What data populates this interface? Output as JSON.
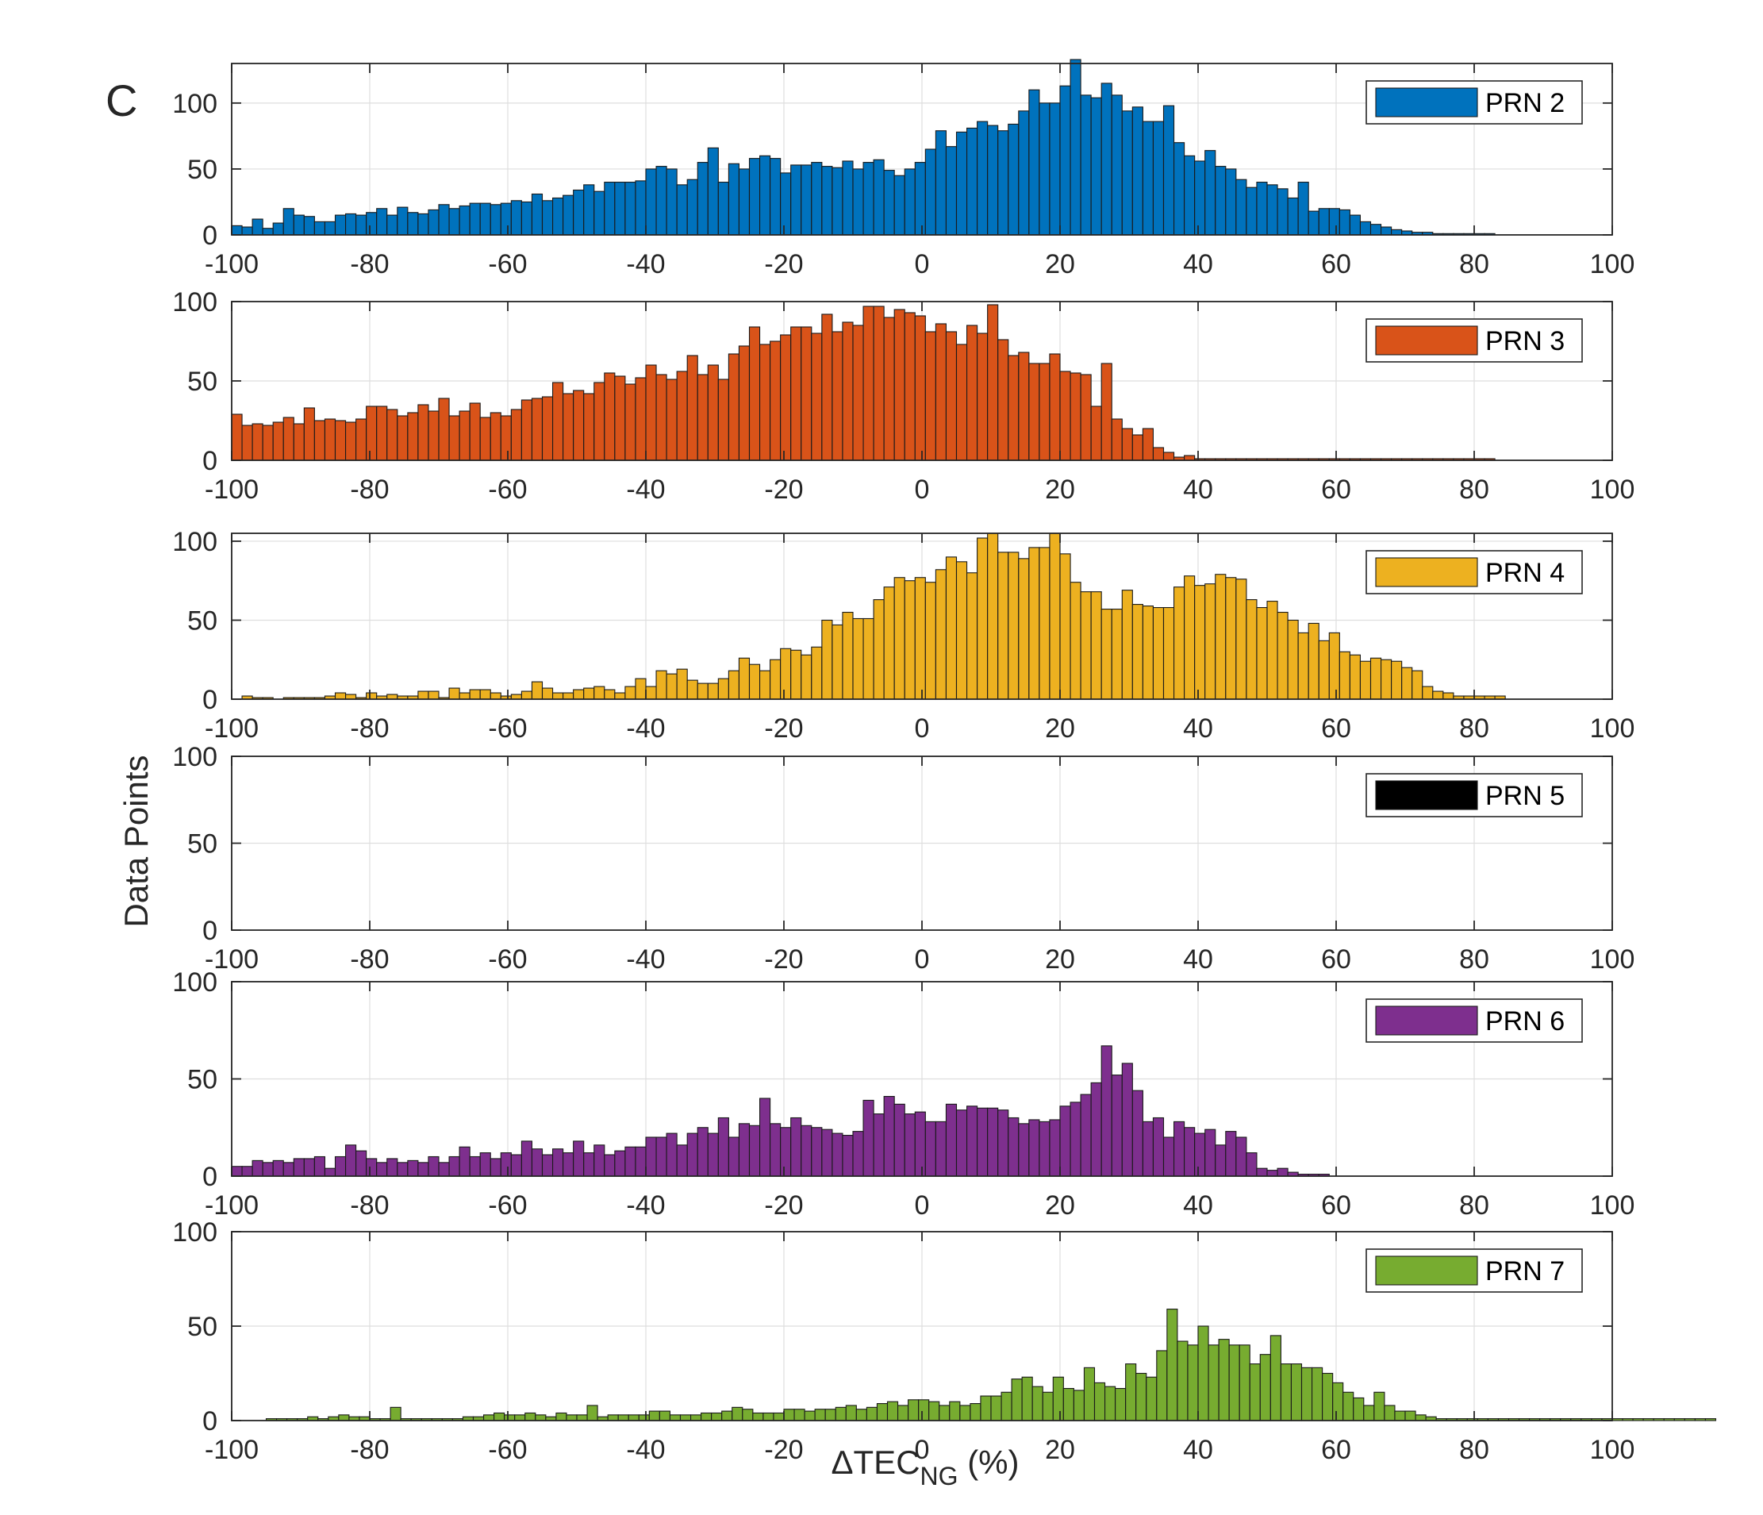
{
  "figure": {
    "panel_label": "C",
    "ylabel": "Data Points",
    "xlabel_main": "ΔTEC",
    "xlabel_sub": "NG",
    "xlabel_unit": " (%)"
  },
  "chart_data": [
    {
      "type": "bar",
      "series_name": "PRN 2",
      "color": "#0072BD",
      "xlim": [
        -100,
        100
      ],
      "ylim": [
        0,
        130
      ],
      "yticks": [
        0,
        50,
        100
      ],
      "xticks": [
        -100,
        -80,
        -60,
        -40,
        -20,
        0,
        20,
        40,
        60,
        80,
        100
      ],
      "bin_start": -100,
      "bin_width": 1.5,
      "values": [
        7,
        6,
        12,
        5,
        9,
        20,
        15,
        14,
        10,
        10,
        15,
        16,
        15,
        17,
        20,
        15,
        21,
        17,
        16,
        19,
        23,
        20,
        22,
        24,
        24,
        23,
        24,
        26,
        25,
        31,
        26,
        28,
        30,
        34,
        38,
        33,
        40,
        40,
        40,
        41,
        50,
        52,
        50,
        38,
        42,
        55,
        66,
        40,
        54,
        50,
        58,
        60,
        58,
        47,
        53,
        53,
        55,
        52,
        51,
        56,
        50,
        55,
        57,
        49,
        45,
        50,
        55,
        65,
        79,
        67,
        78,
        81,
        86,
        83,
        79,
        84,
        94,
        110,
        100,
        100,
        113,
        133,
        106,
        104,
        115,
        106,
        94,
        97,
        86,
        86,
        98,
        70,
        60,
        56,
        64,
        52,
        50,
        42,
        36,
        40,
        38,
        35,
        28,
        40,
        18,
        20,
        20,
        19,
        15,
        10,
        8,
        6,
        4,
        3,
        2,
        2,
        1,
        1,
        1,
        1,
        1,
        1
      ]
    },
    {
      "type": "bar",
      "series_name": "PRN 3",
      "color": "#D95319",
      "xlim": [
        -100,
        100
      ],
      "ylim": [
        0,
        100
      ],
      "yticks": [
        0,
        50,
        100
      ],
      "xticks": [
        -100,
        -80,
        -60,
        -40,
        -20,
        0,
        20,
        40,
        60,
        80,
        100
      ],
      "bin_start": -100,
      "bin_width": 1.5,
      "values": [
        29,
        22,
        23,
        22,
        24,
        27,
        23,
        33,
        25,
        26,
        25,
        24,
        26,
        34,
        34,
        32,
        28,
        30,
        35,
        31,
        39,
        28,
        31,
        36,
        27,
        30,
        28,
        32,
        38,
        39,
        40,
        49,
        42,
        44,
        42,
        49,
        55,
        53,
        48,
        52,
        60,
        54,
        51,
        56,
        66,
        54,
        60,
        51,
        67,
        72,
        84,
        73,
        75,
        79,
        84,
        84,
        80,
        92,
        81,
        87,
        85,
        97,
        97,
        90,
        95,
        93,
        91,
        81,
        86,
        81,
        73,
        85,
        80,
        98,
        76,
        66,
        68,
        61,
        61,
        67,
        56,
        55,
        54,
        34,
        61,
        26,
        20,
        16,
        20,
        8,
        5,
        2,
        3,
        1,
        1,
        1,
        1,
        1,
        1,
        1,
        1,
        1,
        1,
        1,
        1,
        1,
        1,
        1,
        1,
        1,
        1,
        1,
        1,
        1,
        1,
        1,
        1,
        1,
        1,
        1,
        1,
        1
      ]
    },
    {
      "type": "bar",
      "series_name": "PRN 4",
      "color": "#EDB120",
      "xlim": [
        -100,
        100
      ],
      "ylim": [
        0,
        105
      ],
      "yticks": [
        0,
        50,
        100
      ],
      "xticks": [
        -100,
        -80,
        -60,
        -40,
        -20,
        0,
        20,
        40,
        60,
        80,
        100
      ],
      "bin_start": -100,
      "bin_width": 1.5,
      "values": [
        0,
        2,
        1,
        1,
        0,
        1,
        1,
        1,
        1,
        2,
        4,
        3,
        1,
        4,
        2,
        3,
        2,
        2,
        5,
        5,
        1,
        7,
        4,
        6,
        6,
        4,
        2,
        3,
        5,
        11,
        7,
        4,
        4,
        6,
        7,
        8,
        6,
        4,
        8,
        13,
        8,
        18,
        16,
        19,
        12,
        10,
        10,
        13,
        18,
        26,
        22,
        18,
        25,
        32,
        31,
        28,
        33,
        50,
        47,
        55,
        51,
        51,
        63,
        71,
        77,
        75,
        77,
        74,
        82,
        90,
        87,
        80,
        102,
        105,
        93,
        93,
        89,
        96,
        96,
        105,
        92,
        74,
        68,
        68,
        57,
        57,
        69,
        60,
        59,
        58,
        58,
        71,
        78,
        72,
        73,
        79,
        77,
        76,
        63,
        58,
        62,
        55,
        50,
        42,
        48,
        37,
        42,
        30,
        28,
        24,
        26,
        25,
        24,
        20,
        18,
        8,
        5,
        4,
        2,
        2,
        2,
        2,
        2
      ]
    },
    {
      "type": "bar",
      "series_name": "PRN 5",
      "color": "#000000",
      "xlim": [
        -100,
        100
      ],
      "ylim": [
        0,
        100
      ],
      "yticks": [
        0,
        50,
        100
      ],
      "xticks": [
        -100,
        -80,
        -60,
        -40,
        -20,
        0,
        20,
        40,
        60,
        80,
        100
      ],
      "bin_start": 0,
      "bin_width": 1.5,
      "values": [
        0,
        0,
        0,
        0,
        0,
        0,
        0,
        0,
        0,
        0,
        0,
        0,
        0,
        0,
        0,
        0,
        0,
        0,
        0,
        0,
        0,
        0,
        0,
        0,
        0,
        0,
        0,
        0,
        0,
        0,
        0,
        0,
        0,
        0,
        0,
        0,
        0,
        0,
        0,
        0,
        0
      ]
    },
    {
      "type": "bar",
      "series_name": "PRN 6",
      "color": "#7E2F8E",
      "xlim": [
        -100,
        100
      ],
      "ylim": [
        0,
        100
      ],
      "yticks": [
        0,
        50,
        100
      ],
      "xticks": [
        -100,
        -80,
        -60,
        -40,
        -20,
        0,
        20,
        40,
        60,
        80,
        100
      ],
      "bin_start": -100,
      "bin_width": 1.5,
      "values": [
        5,
        5,
        8,
        7,
        8,
        7,
        9,
        9,
        10,
        4,
        10,
        16,
        13,
        9,
        7,
        9,
        7,
        8,
        7,
        10,
        7,
        10,
        15,
        10,
        12,
        9,
        12,
        11,
        18,
        14,
        11,
        14,
        12,
        18,
        12,
        16,
        11,
        13,
        15,
        15,
        20,
        20,
        22,
        16,
        22,
        25,
        22,
        30,
        20,
        27,
        26,
        40,
        27,
        25,
        30,
        26,
        25,
        24,
        22,
        21,
        23,
        39,
        32,
        41,
        37,
        32,
        33,
        28,
        28,
        37,
        34,
        36,
        35,
        35,
        34,
        30,
        27,
        29,
        28,
        29,
        36,
        38,
        42,
        48,
        67,
        52,
        58,
        44,
        28,
        30,
        20,
        28,
        25,
        22,
        24,
        16,
        23,
        20,
        12,
        4,
        3,
        4,
        2,
        1,
        1,
        1
      ]
    },
    {
      "type": "bar",
      "series_name": "PRN 7",
      "color": "#77AC30",
      "xlim": [
        -100,
        100
      ],
      "ylim": [
        0,
        100
      ],
      "yticks": [
        0,
        50,
        100
      ],
      "xticks": [
        -100,
        -80,
        -60,
        -40,
        -20,
        0,
        20,
        40,
        60,
        80,
        100
      ],
      "bin_start": -95,
      "bin_width": 1.5,
      "values": [
        1,
        1,
        1,
        1,
        2,
        1,
        2,
        3,
        2,
        2,
        1,
        1,
        7,
        1,
        1,
        1,
        1,
        1,
        1,
        2,
        2,
        3,
        4,
        3,
        3,
        4,
        3,
        2,
        4,
        3,
        3,
        8,
        2,
        3,
        3,
        3,
        3,
        5,
        5,
        3,
        3,
        3,
        4,
        4,
        5,
        7,
        6,
        4,
        4,
        4,
        6,
        6,
        5,
        6,
        6,
        7,
        8,
        6,
        7,
        9,
        10,
        8,
        11,
        11,
        10,
        8,
        10,
        8,
        9,
        13,
        13,
        15,
        22,
        23,
        18,
        15,
        23,
        17,
        16,
        28,
        20,
        18,
        17,
        30,
        25,
        23,
        37,
        59,
        42,
        40,
        50,
        40,
        43,
        40,
        40,
        30,
        35,
        45,
        30,
        30,
        28,
        28,
        25,
        20,
        15,
        12,
        8,
        15,
        8,
        5,
        5,
        3,
        2,
        1,
        1,
        1,
        1,
        1,
        1,
        1,
        1,
        1,
        1,
        1,
        1,
        1,
        1,
        1,
        1,
        1,
        1,
        1,
        1,
        1,
        1,
        1,
        1,
        1,
        1,
        1
      ]
    }
  ]
}
